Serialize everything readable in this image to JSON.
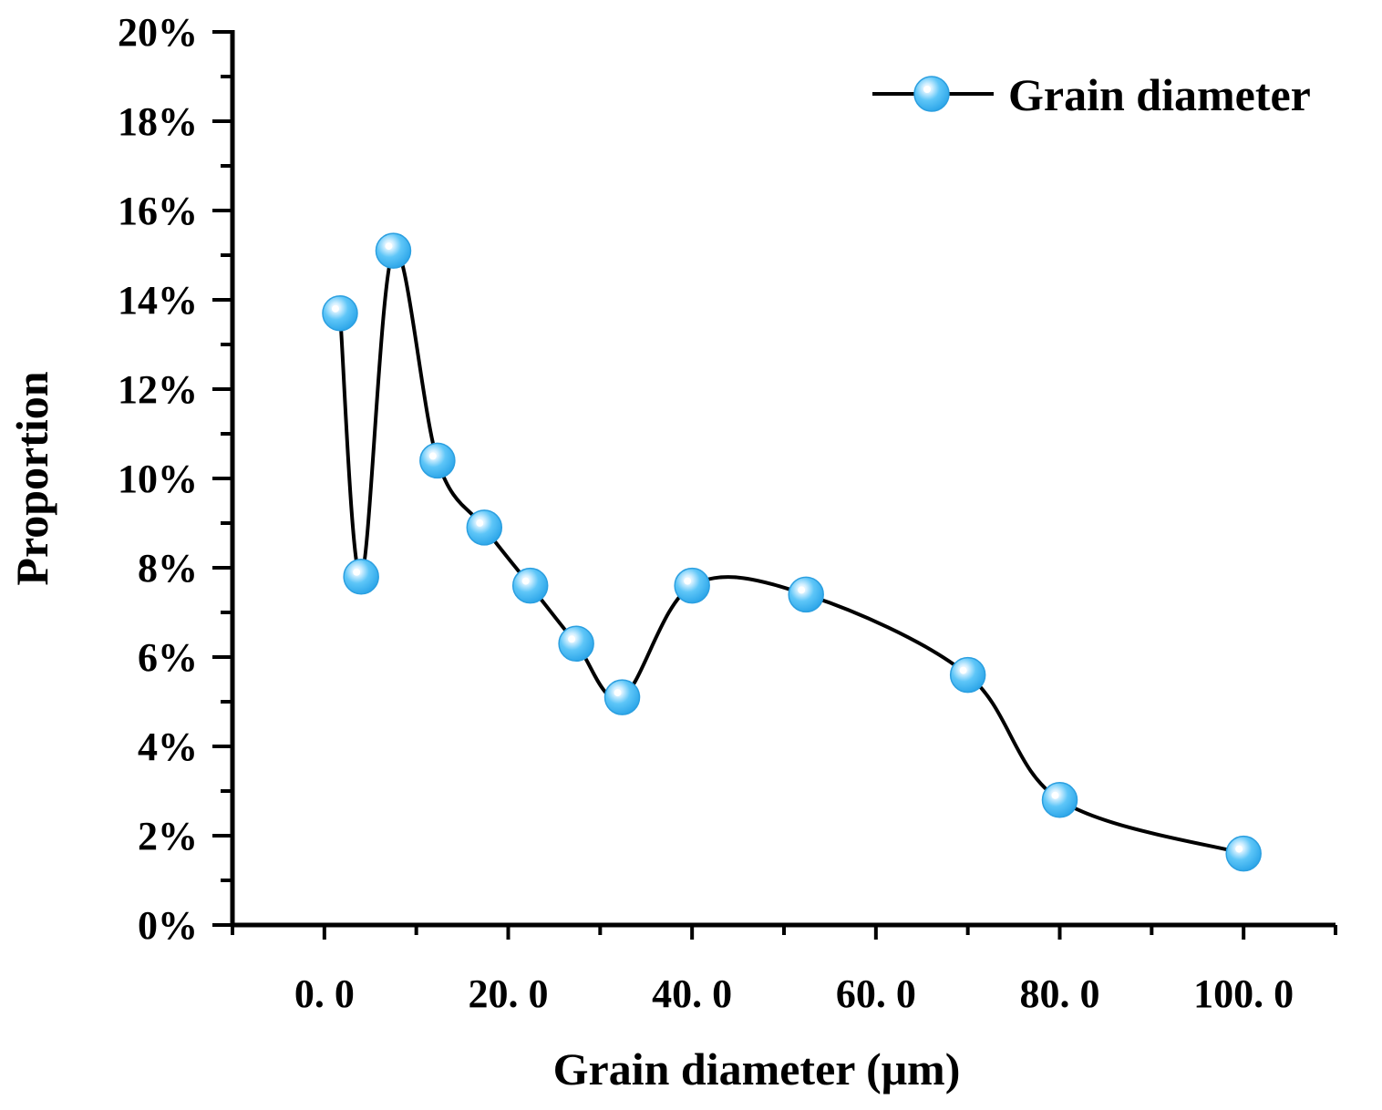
{
  "chart_data": {
    "type": "line",
    "title": "",
    "xlabel": "Grain diameter (μm)",
    "ylabel": "Proportion",
    "xlim": [
      -10,
      110
    ],
    "ylim": [
      0,
      20
    ],
    "x_ticks": [
      0,
      20,
      40,
      60,
      80,
      100
    ],
    "x_tick_labels": [
      "0. 0",
      "20. 0",
      "40. 0",
      "60. 0",
      "80. 0",
      "100. 0"
    ],
    "y_ticks": [
      0,
      2,
      4,
      6,
      8,
      10,
      12,
      14,
      16,
      18,
      20
    ],
    "y_tick_labels": [
      "0%",
      "2%",
      "4%",
      "6%",
      "8%",
      "10%",
      "12%",
      "14%",
      "16%",
      "18%",
      "20%"
    ],
    "grid": false,
    "legend": {
      "position": "top-right"
    },
    "series": [
      {
        "name": "Grain diameter",
        "smooth": true,
        "line_color": "#000000",
        "marker_color": "#4dbbf5",
        "x": [
          1.7,
          4.0,
          7.5,
          12.3,
          17.4,
          22.4,
          27.4,
          32.4,
          40.0,
          52.4,
          70.0,
          80.0,
          100.0
        ],
        "y": [
          13.7,
          7.8,
          15.1,
          10.4,
          8.9,
          7.6,
          6.3,
          5.1,
          7.6,
          7.4,
          5.6,
          2.8,
          1.6
        ]
      }
    ]
  }
}
